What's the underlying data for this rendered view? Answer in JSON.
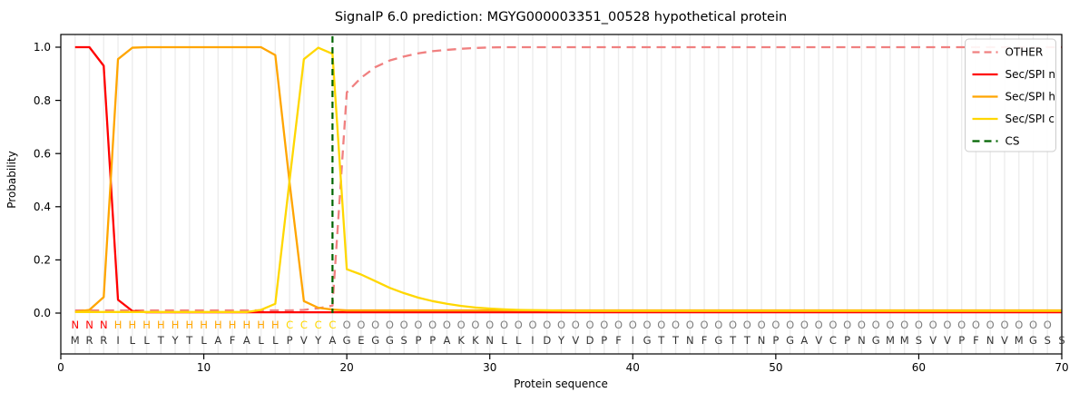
{
  "title": "SignalP 6.0 prediction: MGYG000003351_00528 hypothetical protein",
  "xlabel": "Protein sequence",
  "ylabel": "Probability",
  "chart_data": {
    "type": "line",
    "x_range": [
      1,
      70
    ],
    "x_step": 1,
    "xlim": [
      0,
      70
    ],
    "ylim": [
      0,
      1.05
    ],
    "grid": "vertical light gridline at every residue position",
    "legend_position": "upper right",
    "xticks": [
      0,
      10,
      20,
      30,
      40,
      50,
      60,
      70
    ],
    "yticks": [
      {
        "value": 1.0,
        "label": "1.0"
      },
      {
        "value": 0.8,
        "label": "0.8"
      },
      {
        "value": 0.6,
        "label": "0.6"
      },
      {
        "value": 0.4,
        "label": "0.4"
      },
      {
        "value": 0.2,
        "label": "0.2"
      },
      {
        "value": 0.0,
        "label": "0.0"
      }
    ],
    "cs_position": 19,
    "sequence": "MRRILLTYTLAFALLPVYAGEGGSPPAKKNLLIDYVDPFIGTTNFGTTNPGAVCPNGMMSVVPFNVMGSS",
    "region_labels": "NNNHHHHHHHHHHHHCCCCOOOOOOOOOOOOOOOOOOOOOOOOOOOOOOOOOOOOOOOOOOOOOOOOOO",
    "series": [
      {
        "name": "OTHER",
        "color": "#f08080",
        "dash": true,
        "values": [
          0.01,
          0.01,
          0.01,
          0.01,
          0.01,
          0.01,
          0.01,
          0.01,
          0.01,
          0.01,
          0.01,
          0.01,
          0.01,
          0.01,
          0.01,
          0.01,
          0.012,
          0.018,
          0.028,
          0.83,
          0.885,
          0.925,
          0.95,
          0.965,
          0.977,
          0.985,
          0.99,
          0.994,
          0.997,
          0.999,
          1.0,
          1.0,
          1.0,
          1.0,
          1.0,
          1.0,
          1.0,
          1.0,
          1.0,
          1.0,
          1.0,
          1.0,
          1.0,
          1.0,
          1.0,
          1.0,
          1.0,
          1.0,
          1.0,
          1.0,
          1.0,
          1.0,
          1.0,
          1.0,
          1.0,
          1.0,
          1.0,
          1.0,
          1.0,
          1.0,
          1.0,
          1.0,
          1.0,
          1.0,
          1.0,
          1.0,
          1.0,
          1.0,
          1.0,
          1.0
        ]
      },
      {
        "name": "Sec/SPI n",
        "color": "#ff0000",
        "dash": false,
        "values": [
          1.0,
          1.0,
          0.93,
          0.05,
          0.008,
          0.003,
          0.003,
          0.003,
          0.003,
          0.003,
          0.003,
          0.003,
          0.003,
          0.003,
          0.003,
          0.003,
          0.003,
          0.003,
          0.003,
          0.003,
          0.003,
          0.003,
          0.003,
          0.003,
          0.003,
          0.003,
          0.003,
          0.003,
          0.003,
          0.003,
          0.003,
          0.003,
          0.003,
          0.003,
          0.003,
          0.003,
          0.003,
          0.003,
          0.003,
          0.003,
          0.003,
          0.003,
          0.003,
          0.003,
          0.003,
          0.003,
          0.003,
          0.003,
          0.003,
          0.003,
          0.003,
          0.003,
          0.003,
          0.003,
          0.003,
          0.003,
          0.003,
          0.003,
          0.003,
          0.003,
          0.003,
          0.003,
          0.003,
          0.003,
          0.003,
          0.003,
          0.003,
          0.003,
          0.003,
          0.003
        ]
      },
      {
        "name": "Sec/SPI h",
        "color": "#ffa500",
        "dash": false,
        "values": [
          0.005,
          0.012,
          0.06,
          0.955,
          0.998,
          1.0,
          1.0,
          1.0,
          1.0,
          1.0,
          1.0,
          1.0,
          1.0,
          1.0,
          0.97,
          0.49,
          0.045,
          0.02,
          0.013,
          0.01,
          0.01,
          0.01,
          0.01,
          0.01,
          0.01,
          0.01,
          0.01,
          0.01,
          0.01,
          0.01,
          0.01,
          0.01,
          0.01,
          0.01,
          0.01,
          0.01,
          0.01,
          0.01,
          0.01,
          0.01,
          0.01,
          0.01,
          0.01,
          0.01,
          0.01,
          0.01,
          0.01,
          0.01,
          0.01,
          0.01,
          0.01,
          0.01,
          0.01,
          0.01,
          0.01,
          0.01,
          0.01,
          0.01,
          0.01,
          0.01,
          0.01,
          0.01,
          0.01,
          0.01,
          0.01,
          0.01,
          0.01,
          0.01,
          0.01,
          0.01
        ]
      },
      {
        "name": "Sec/SPI c",
        "color": "#ffd700",
        "dash": false,
        "values": [
          0.004,
          0.004,
          0.004,
          0.004,
          0.004,
          0.004,
          0.004,
          0.004,
          0.004,
          0.004,
          0.004,
          0.004,
          0.004,
          0.012,
          0.035,
          0.5,
          0.955,
          0.998,
          0.975,
          0.165,
          0.145,
          0.12,
          0.095,
          0.075,
          0.058,
          0.045,
          0.035,
          0.027,
          0.021,
          0.017,
          0.014,
          0.012,
          0.011,
          0.01,
          0.009,
          0.008,
          0.008,
          0.008,
          0.008,
          0.008,
          0.008,
          0.008,
          0.008,
          0.008,
          0.008,
          0.008,
          0.008,
          0.008,
          0.008,
          0.008,
          0.008,
          0.008,
          0.008,
          0.008,
          0.008,
          0.008,
          0.008,
          0.008,
          0.008,
          0.008,
          0.008,
          0.008,
          0.008,
          0.008,
          0.008,
          0.008,
          0.008,
          0.008,
          0.008,
          0.008
        ]
      }
    ],
    "cs_line": {
      "label": "CS",
      "color": "#006400",
      "dash": true
    }
  },
  "legend": {
    "entries": [
      {
        "label": "OTHER",
        "color": "#f08080",
        "dash": true
      },
      {
        "label": "Sec/SPI n",
        "color": "#ff0000",
        "dash": false
      },
      {
        "label": "Sec/SPI h",
        "color": "#ffa500",
        "dash": false
      },
      {
        "label": "Sec/SPI c",
        "color": "#ffd700",
        "dash": false
      },
      {
        "label": "CS",
        "color": "#006400",
        "dash": true
      }
    ]
  },
  "letter_colors": {
    "N": "#ff0000",
    "H": "#ffa500",
    "C": "#ffd700",
    "O": "#7f7f7f"
  },
  "sequence_letter_color": "#333333",
  "colors": {
    "grid": "#ededed",
    "spine": "#000000",
    "legend_border": "#cccccc",
    "legend_bg": "rgba(255,255,255,0.9)"
  }
}
